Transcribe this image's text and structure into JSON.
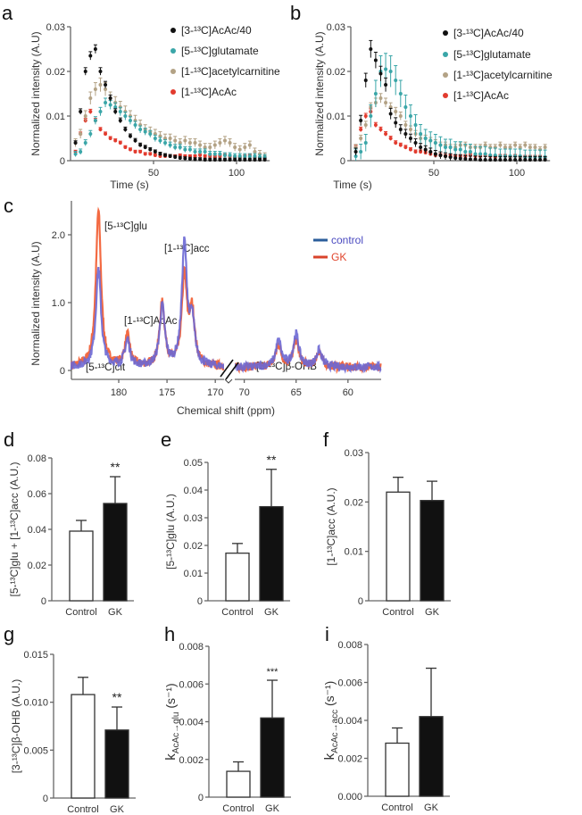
{
  "chart_data": [
    {
      "panel": "a",
      "type": "scatter",
      "xlabel": "Time (s)",
      "ylabel": "Normalized intensity (A.U)",
      "xlim": [
        0,
        120
      ],
      "ylim": [
        0,
        0.03
      ],
      "xticks": [
        50,
        100
      ],
      "yticks": [
        0,
        0.01,
        0.02,
        0.03
      ],
      "ytick_labels": [
        "0",
        "0.01",
        "0.02",
        "0.03"
      ],
      "legend_position": "top-right",
      "x": [
        3,
        6,
        9,
        12,
        15,
        18,
        21,
        24,
        27,
        30,
        33,
        36,
        39,
        42,
        45,
        48,
        51,
        54,
        57,
        60,
        63,
        66,
        69,
        72,
        75,
        78,
        81,
        84,
        87,
        90,
        93,
        96,
        99,
        102,
        105,
        108,
        111,
        114,
        117
      ],
      "series": [
        {
          "name": "[3-¹³C]AcAc/40",
          "color": "#111111",
          "error": 0.0006,
          "values": [
            0.004,
            0.011,
            0.02,
            0.0235,
            0.025,
            0.02,
            0.017,
            0.014,
            0.011,
            0.009,
            0.007,
            0.0055,
            0.0045,
            0.0035,
            0.003,
            0.0025,
            0.002,
            0.0015,
            0.0012,
            0.001,
            0.0008,
            0.0006,
            0.0005,
            0.0004,
            0.0003,
            0.0003,
            0.0002,
            0.0002,
            0.0002,
            0.0002,
            0.0002,
            0.0002,
            0.0002,
            0.0002,
            0.0002,
            0.0002,
            0.0002,
            0.0002,
            0.0002
          ]
        },
        {
          "name": "[5-¹³C]glutamate",
          "color": "#3aa6a8",
          "error": 0.0009,
          "values": [
            0.0015,
            0.002,
            0.004,
            0.006,
            0.009,
            0.011,
            0.013,
            0.0125,
            0.012,
            0.011,
            0.01,
            0.009,
            0.008,
            0.007,
            0.0065,
            0.006,
            0.005,
            0.0045,
            0.004,
            0.0035,
            0.003,
            0.003,
            0.0025,
            0.0025,
            0.002,
            0.002,
            0.002,
            0.0015,
            0.0015,
            0.0015,
            0.0012,
            0.0012,
            0.001,
            0.001,
            0.001,
            0.001,
            0.001,
            0.0008,
            0.0008
          ]
        },
        {
          "name": "[1-¹³C]acetylcarnitine",
          "color": "#b3a285",
          "error": 0.0012,
          "values": [
            0.004,
            0.006,
            0.01,
            0.014,
            0.016,
            0.017,
            0.016,
            0.014,
            0.013,
            0.012,
            0.011,
            0.01,
            0.009,
            0.008,
            0.007,
            0.0065,
            0.006,
            0.0055,
            0.005,
            0.005,
            0.0045,
            0.004,
            0.0045,
            0.004,
            0.004,
            0.0035,
            0.003,
            0.003,
            0.0035,
            0.004,
            0.0045,
            0.004,
            0.003,
            0.0025,
            0.003,
            0.0035,
            0.002,
            0.0015,
            0.001
          ]
        },
        {
          "name": "[1-¹³C]AcAc",
          "color": "#e23b2e",
          "error": 0.0005,
          "values": [
            0.002,
            0.006,
            0.009,
            0.011,
            0.009,
            0.007,
            0.006,
            0.005,
            0.0045,
            0.004,
            0.003,
            0.0025,
            0.002,
            0.002,
            0.0015,
            0.0015,
            0.0012,
            0.001,
            0.001,
            0.001,
            0.001,
            0.0012,
            0.001,
            0.001,
            0.001,
            0.0012,
            0.001,
            0.001,
            0.0008,
            0.001,
            0.0012,
            0.001,
            0.0008,
            0.0008,
            0.001,
            0.0012,
            0.0008,
            0.0006,
            0.0005
          ]
        }
      ]
    },
    {
      "panel": "b",
      "type": "scatter",
      "xlabel": "Time (s)",
      "ylabel": "Normalized intensity (A.U)",
      "xlim": [
        0,
        120
      ],
      "ylim": [
        0,
        0.03
      ],
      "xticks": [
        50,
        100
      ],
      "yticks": [
        0,
        0.01,
        0.02,
        0.03
      ],
      "ytick_labels": [
        "0",
        "0.01",
        "0.02",
        "0.03"
      ],
      "legend_position": "top-right",
      "x": [
        3,
        6,
        9,
        12,
        15,
        18,
        21,
        24,
        27,
        30,
        33,
        36,
        39,
        42,
        45,
        48,
        51,
        54,
        57,
        60,
        63,
        66,
        69,
        72,
        75,
        78,
        81,
        84,
        87,
        90,
        93,
        96,
        99,
        102,
        105,
        108,
        111,
        114,
        117
      ],
      "series": [
        {
          "name": "[3-¹³C]AcAc/40",
          "color": "#111111",
          "error": 0.0012,
          "values": [
            0.002,
            0.009,
            0.018,
            0.025,
            0.0225,
            0.0195,
            0.017,
            0.0105,
            0.0085,
            0.007,
            0.006,
            0.005,
            0.004,
            0.003,
            0.0025,
            0.002,
            0.0015,
            0.0012,
            0.001,
            0.0008,
            0.0006,
            0.0005,
            0.0004,
            0.0003,
            0.0003,
            0.0002,
            0.0002,
            0.0002,
            0.0002,
            0.0002,
            0.0002,
            0.0002,
            0.0002,
            0.0002,
            0.0002,
            0.0002,
            0.0002,
            0.0002,
            0.0002
          ]
        },
        {
          "name": "[5-¹³C]glutamate",
          "color": "#3aa6a8",
          "error": 0.0025,
          "values": [
            0.001,
            0.002,
            0.004,
            0.01,
            0.015,
            0.02,
            0.0205,
            0.02,
            0.018,
            0.015,
            0.012,
            0.01,
            0.008,
            0.006,
            0.005,
            0.0045,
            0.004,
            0.0035,
            0.003,
            0.003,
            0.0025,
            0.0025,
            0.002,
            0.002,
            0.0015,
            0.0015,
            0.0015,
            0.0012,
            0.0012,
            0.001,
            0.001,
            0.001,
            0.001,
            0.001,
            0.0008,
            0.0008,
            0.0008,
            0.0008,
            0.0008
          ]
        },
        {
          "name": "[1-¹³C]acetylcarnitine",
          "color": "#b3a285",
          "error": 0.0009,
          "values": [
            0.003,
            0.005,
            0.008,
            0.012,
            0.013,
            0.014,
            0.013,
            0.012,
            0.011,
            0.01,
            0.008,
            0.007,
            0.006,
            0.005,
            0.005,
            0.0045,
            0.004,
            0.0035,
            0.0035,
            0.003,
            0.003,
            0.0035,
            0.0035,
            0.003,
            0.003,
            0.003,
            0.0035,
            0.003,
            0.003,
            0.0035,
            0.003,
            0.003,
            0.0035,
            0.003,
            0.0035,
            0.003,
            0.003,
            0.0025,
            0.003
          ]
        },
        {
          "name": "[1-¹³C]AcAc",
          "color": "#e23b2e",
          "error": 0.0006,
          "values": [
            0.003,
            0.007,
            0.01,
            0.011,
            0.008,
            0.007,
            0.006,
            0.005,
            0.004,
            0.0035,
            0.003,
            0.0025,
            0.002,
            0.002,
            0.0018,
            0.0015,
            0.0012,
            0.0012,
            0.001,
            0.001,
            0.001,
            0.001,
            0.001,
            0.0012,
            0.001,
            0.001,
            0.0012,
            0.001,
            0.0008,
            0.001,
            0.001,
            0.0008,
            0.001,
            0.0008,
            0.0008,
            0.0008,
            0.0008,
            0.0008,
            0.0006
          ]
        }
      ]
    },
    {
      "panel": "c",
      "type": "line",
      "xlabel": "Chemical shift (ppm)",
      "ylabel": "Normalized intensity (A.U)",
      "ylim": [
        -0.1,
        2.4
      ],
      "yticks": [
        0,
        1.0,
        2.0
      ],
      "ytick_labels": [
        "0",
        "1.0",
        "2.0"
      ],
      "xlim_left": [
        184.9,
        169.0
      ],
      "xlim_right": [
        71.0,
        56.8
      ],
      "xticks_left": [
        180,
        175,
        170
      ],
      "xticks_right": [
        70,
        65,
        60
      ],
      "legend_position": "top-right",
      "legend": [
        {
          "name": "control",
          "color": "#2b5d9b",
          "trace_color": "#6b68d4"
        },
        {
          "name": "GK",
          "color": "#d9432b",
          "trace_color": "#f25a2e"
        }
      ],
      "peaks": [
        {
          "ppm": 182.1,
          "control": 1.45,
          "GK": 2.3
        },
        {
          "ppm": 179.1,
          "control": 0.38,
          "GK": 0.45
        },
        {
          "ppm": 175.5,
          "control": 0.88,
          "GK": 0.93
        },
        {
          "ppm": 173.2,
          "control": 1.78,
          "GK": 1.3
        },
        {
          "ppm": 172.4,
          "control": 0.62,
          "GK": 0.78
        },
        {
          "ppm": 66.7,
          "control": 0.38,
          "GK": 0.32
        },
        {
          "ppm": 65.0,
          "control": 0.48,
          "GK": 0.38
        },
        {
          "ppm": 62.8,
          "control": 0.24,
          "GK": 0.22
        }
      ],
      "annotations": [
        "[5-¹³C]glu",
        "[1-¹³C]acc",
        "[1-¹³C]AcAc",
        "[5-¹³C]cit",
        "[3-¹³C]β-OHB"
      ]
    },
    {
      "panel": "d",
      "type": "bar",
      "ylabel": "[5-¹³C]glu + [1-¹³C]acc (A.U.)",
      "ylim": [
        0,
        0.08
      ],
      "yticks": [
        0,
        0.02,
        0.04,
        0.06,
        0.08
      ],
      "ytick_labels": [
        "0",
        "0.02",
        "0.04",
        "0.06",
        "0.08"
      ],
      "categories": [
        "Control",
        "GK"
      ],
      "values": [
        0.039,
        0.0545
      ],
      "errors": [
        0.006,
        0.015
      ],
      "significance": "**"
    },
    {
      "panel": "e",
      "type": "bar",
      "ylabel": "[5-¹³C]glu (A.U.)",
      "ylim": [
        0,
        0.05
      ],
      "yticks": [
        0,
        0.01,
        0.02,
        0.03,
        0.04,
        0.05
      ],
      "ytick_labels": [
        "0",
        "0.01",
        "0.02",
        "0.03",
        "0.04",
        "0.05"
      ],
      "categories": [
        "Control",
        "GK"
      ],
      "values": [
        0.0172,
        0.034
      ],
      "errors": [
        0.0035,
        0.0135
      ],
      "significance": "**"
    },
    {
      "panel": "f",
      "type": "bar",
      "ylabel": "[1-¹³C]acc (A.U.)",
      "ylim": [
        0,
        0.03
      ],
      "yticks": [
        0,
        0.01,
        0.02,
        0.03
      ],
      "ytick_labels": [
        "0",
        "0.01",
        "0.02",
        "0.03"
      ],
      "categories": [
        "Control",
        "GK"
      ],
      "values": [
        0.022,
        0.0203
      ],
      "errors": [
        0.003,
        0.0039
      ],
      "significance": ""
    },
    {
      "panel": "g",
      "type": "bar",
      "ylabel": "[3-¹³C]β-OHB (A.U.)",
      "ylim": [
        0,
        0.015
      ],
      "yticks": [
        0,
        0.005,
        0.01,
        0.015
      ],
      "ytick_labels": [
        "0",
        "0.005",
        "0.010",
        "0.015"
      ],
      "categories": [
        "Control",
        "GK"
      ],
      "values": [
        0.0108,
        0.0071
      ],
      "errors": [
        0.0018,
        0.0024
      ],
      "significance": "**"
    },
    {
      "panel": "h",
      "type": "bar",
      "ylabel": "k",
      "ylabel_sub": "AcAc→glu",
      "ylabel_unit": " (s⁻¹)",
      "ylim": [
        0,
        0.008
      ],
      "yticks": [
        0,
        0.002,
        0.004,
        0.006,
        0.008
      ],
      "ytick_labels": [
        "0",
        "0.002",
        "0.004",
        "0.006",
        "0.008"
      ],
      "categories": [
        "Control",
        "GK"
      ],
      "values": [
        0.00137,
        0.0042
      ],
      "errors": [
        0.0005,
        0.002
      ],
      "significance": "***"
    },
    {
      "panel": "i",
      "type": "bar",
      "ylabel": "k",
      "ylabel_sub": "AcAc→acc",
      "ylabel_unit": " (s⁻¹)",
      "ylim": [
        0,
        0.008
      ],
      "yticks": [
        0,
        0.002,
        0.004,
        0.006,
        0.008
      ],
      "ytick_labels": [
        "0.000",
        "0.002",
        "0.004",
        "0.006",
        "0.008"
      ],
      "categories": [
        "Control",
        "GK"
      ],
      "values": [
        0.0028,
        0.0042
      ],
      "errors": [
        0.0008,
        0.00255
      ],
      "significance": ""
    }
  ],
  "colors": {
    "axis": "#666666",
    "bar_gk": "#111111",
    "bar_control": "#ffffff"
  }
}
